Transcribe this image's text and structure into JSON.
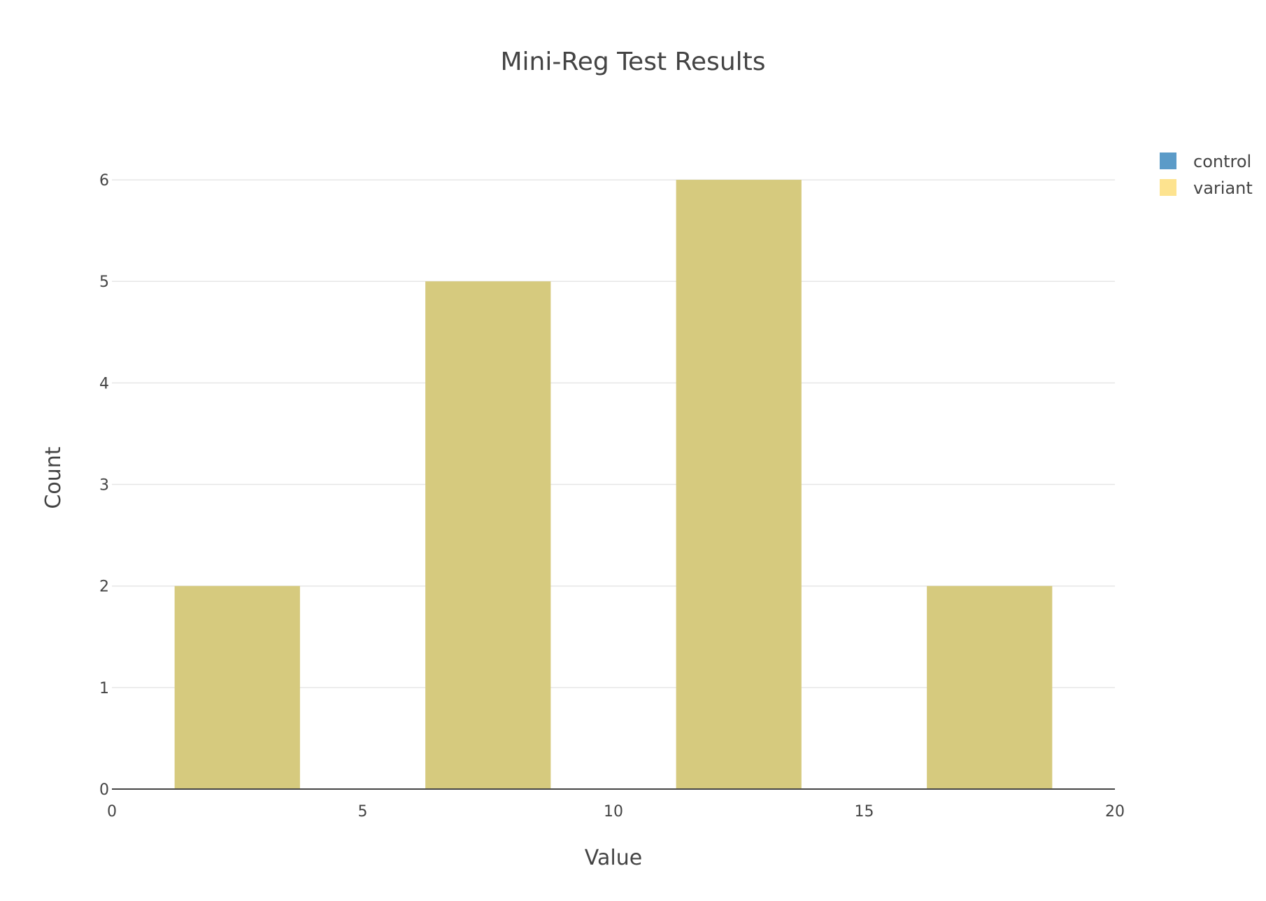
{
  "chart_data": {
    "type": "bar",
    "chart_subtype": "overlaid histogram",
    "title": "Mini-Reg Test Results",
    "xlabel": "Value",
    "ylabel": "Count",
    "xlim": [
      0,
      20
    ],
    "ylim": [
      0,
      6.4
    ],
    "x_ticks": [
      "0",
      "5",
      "10",
      "15",
      "20"
    ],
    "y_ticks": [
      "0",
      "1",
      "2",
      "3",
      "4",
      "5",
      "6"
    ],
    "grid": true,
    "legend_position": "top-right",
    "bins": [
      {
        "start": 1.25,
        "end": 3.75
      },
      {
        "start": 6.25,
        "end": 8.75
      },
      {
        "start": 11.25,
        "end": 13.75
      },
      {
        "start": 16.25,
        "end": 18.75
      }
    ],
    "series": [
      {
        "name": "control",
        "color": "#5b9bc8",
        "values": [
          2,
          5,
          6,
          2
        ]
      },
      {
        "name": "variant",
        "color": "#fde38f",
        "values": [
          2,
          5,
          6,
          2
        ]
      }
    ],
    "overlap_color": "#d6ca7e"
  }
}
